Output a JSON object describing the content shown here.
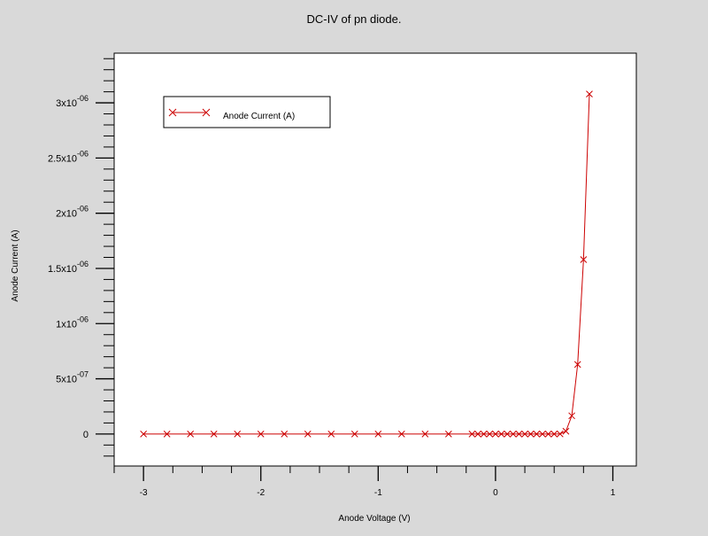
{
  "chart_data": {
    "type": "line",
    "title": "DC-IV of pn diode.",
    "xlabel": "Anode Voltage (V)",
    "ylabel": "Anode Current (A)",
    "xlim": [
      -3.25,
      1.2
    ],
    "ylim": [
      -2.9e-07,
      3.45e-06
    ],
    "x_ticks": [
      {
        "value": -3,
        "label": "-3"
      },
      {
        "value": -2,
        "label": "-2"
      },
      {
        "value": -1,
        "label": "-1"
      },
      {
        "value": 0,
        "label": "0"
      },
      {
        "value": 1,
        "label": "1"
      }
    ],
    "y_ticks": [
      {
        "value": 0,
        "mantissa": "0",
        "exponent": ""
      },
      {
        "value": 5e-07,
        "mantissa": "5x10",
        "exponent": "-07"
      },
      {
        "value": 1e-06,
        "mantissa": "1x10",
        "exponent": "-06"
      },
      {
        "value": 1.5e-06,
        "mantissa": "1.5x10",
        "exponent": "-06"
      },
      {
        "value": 2e-06,
        "mantissa": "2x10",
        "exponent": "-06"
      },
      {
        "value": 2.5e-06,
        "mantissa": "2.5x10",
        "exponent": "-06"
      },
      {
        "value": 3e-06,
        "mantissa": "3x10",
        "exponent": "-06"
      }
    ],
    "grid": false,
    "legend": {
      "position": "top-left",
      "entries": [
        "Anode Current (A)"
      ]
    },
    "series": [
      {
        "name": "Anode Current (A)",
        "color": "#cc0000",
        "marker": "x",
        "x": [
          -3,
          -2.8,
          -2.6,
          -2.4,
          -2.2,
          -2,
          -1.8,
          -1.6,
          -1.4,
          -1.2,
          -1,
          -0.8,
          -0.6,
          -0.4,
          -0.2,
          -0.15,
          -0.1,
          -0.05,
          0,
          0.05,
          0.1,
          0.15,
          0.2,
          0.25,
          0.3,
          0.35,
          0.4,
          0.45,
          0.5,
          0.55,
          0.6,
          0.65,
          0.7,
          0.75,
          0.8
        ],
        "values": [
          0,
          0,
          0,
          0,
          0,
          0,
          0,
          0,
          0,
          0,
          0,
          0,
          0,
          0,
          0,
          0,
          0,
          0,
          0,
          0,
          0,
          0,
          0,
          0,
          0,
          0,
          0,
          0,
          0,
          1e-09,
          2.5e-08,
          1.65e-07,
          6.3e-07,
          1.58e-06,
          3.08e-06
        ]
      }
    ]
  }
}
